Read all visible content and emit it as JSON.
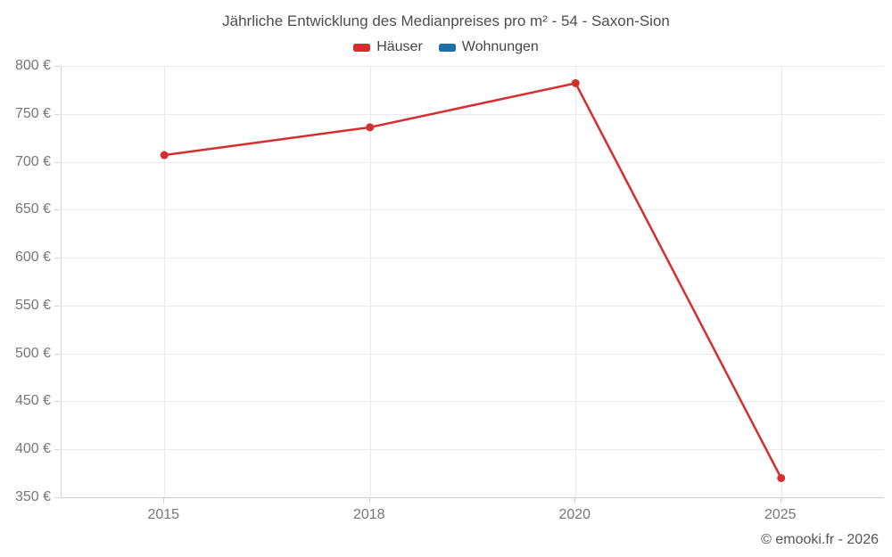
{
  "title": "Jährliche Entwicklung des Medianpreises pro m² - 54 - Saxon-Sion",
  "footer_credit": "© emooki.fr - 2026",
  "chart_data": {
    "type": "line",
    "categories": [
      "2015",
      "2018",
      "2020",
      "2025"
    ],
    "series": [
      {
        "name": "Häuser",
        "color": "#d62e2e",
        "values": [
          707,
          736,
          782,
          370
        ]
      },
      {
        "name": "Wohnungen",
        "color": "#1d6fa5",
        "values": []
      }
    ],
    "title": "Jährliche Entwicklung des Medianpreises pro m² - 54 - Saxon-Sion",
    "xlabel": "",
    "ylabel": "",
    "y_suffix": " €",
    "ylim": [
      350,
      800
    ],
    "ytick_step": 50,
    "grid": true,
    "legend_position": "top",
    "colors": {
      "grid": "#ebebeb",
      "axis": "#d4d4d4",
      "tick_label": "#777777",
      "title_text": "#4d4d4d"
    }
  }
}
